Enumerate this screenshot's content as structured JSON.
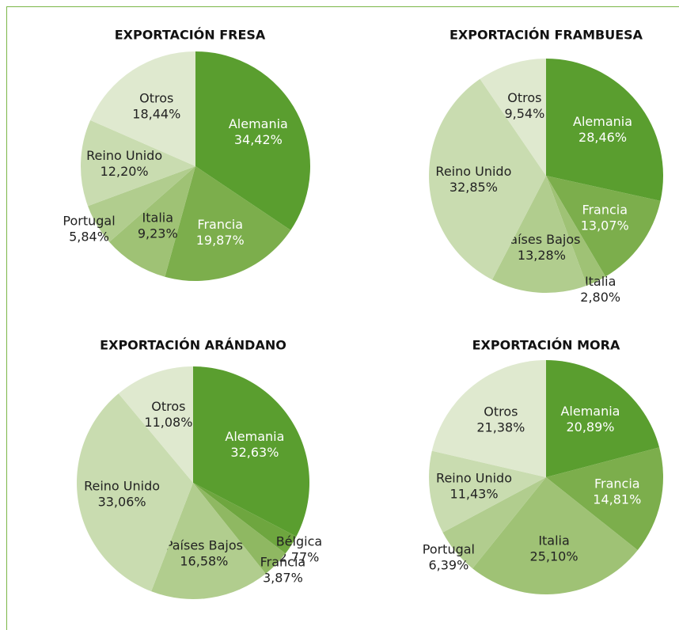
{
  "chart_data": [
    {
      "type": "pie",
      "title": "EXPORTACIÓN FRESA",
      "categories": [
        "Alemania",
        "Francia",
        "Italia",
        "Portugal",
        "Reino Unido",
        "Otros"
      ],
      "values": [
        34.42,
        19.87,
        9.23,
        5.84,
        12.2,
        18.44
      ],
      "value_labels": [
        "34,42%",
        "19,87%",
        "9,23%",
        "5,84%",
        "12,20%",
        "18,44%"
      ],
      "colors": [
        "#5a9e2f",
        "#7cae4c",
        "#9fc275",
        "#b1cd8e",
        "#c9dcb0",
        "#dfe9cf"
      ]
    },
    {
      "type": "pie",
      "title": "EXPORTACIÓN FRAMBUESA",
      "categories": [
        "Alemania",
        "Francia",
        "Italia",
        "Países Bajos",
        "Reino Unido",
        "Otros"
      ],
      "values": [
        28.46,
        13.07,
        2.8,
        13.28,
        32.85,
        9.54
      ],
      "value_labels": [
        "28,46%",
        "13,07%",
        "2,80%",
        "13,28%",
        "32,85%",
        "9,54%"
      ],
      "colors": [
        "#5a9e2f",
        "#7cae4c",
        "#9fc275",
        "#b1cd8e",
        "#c9dcb0",
        "#dfe9cf"
      ]
    },
    {
      "type": "pie",
      "title": "EXPORTACIÓN ARÁNDANO",
      "categories": [
        "Alemania",
        "Bélgica",
        "Francia",
        "Países Bajos",
        "Reino Unido",
        "Otros"
      ],
      "values": [
        32.63,
        2.77,
        3.87,
        16.58,
        33.06,
        11.08
      ],
      "value_labels": [
        "32,63%",
        "2,77%",
        "3,87%",
        "16,58%",
        "33,06%",
        "11,08%"
      ],
      "colors": [
        "#5a9e2f",
        "#6ea63f",
        "#8fb862",
        "#b1cd8e",
        "#c9dcb0",
        "#dfe9cf"
      ]
    },
    {
      "type": "pie",
      "title": "EXPORTACIÓN MORA",
      "categories": [
        "Alemania",
        "Francia",
        "Italia",
        "Portugal",
        "Reino Unido",
        "Otros"
      ],
      "values": [
        20.89,
        14.81,
        25.1,
        6.39,
        11.43,
        21.38
      ],
      "value_labels": [
        "20,89%",
        "14,81%",
        "25,10%",
        "6,39%",
        "11,43%",
        "21,38%"
      ],
      "colors": [
        "#5a9e2f",
        "#7cae4c",
        "#9fc275",
        "#b1cd8e",
        "#c9dcb0",
        "#dfe9cf"
      ]
    }
  ]
}
